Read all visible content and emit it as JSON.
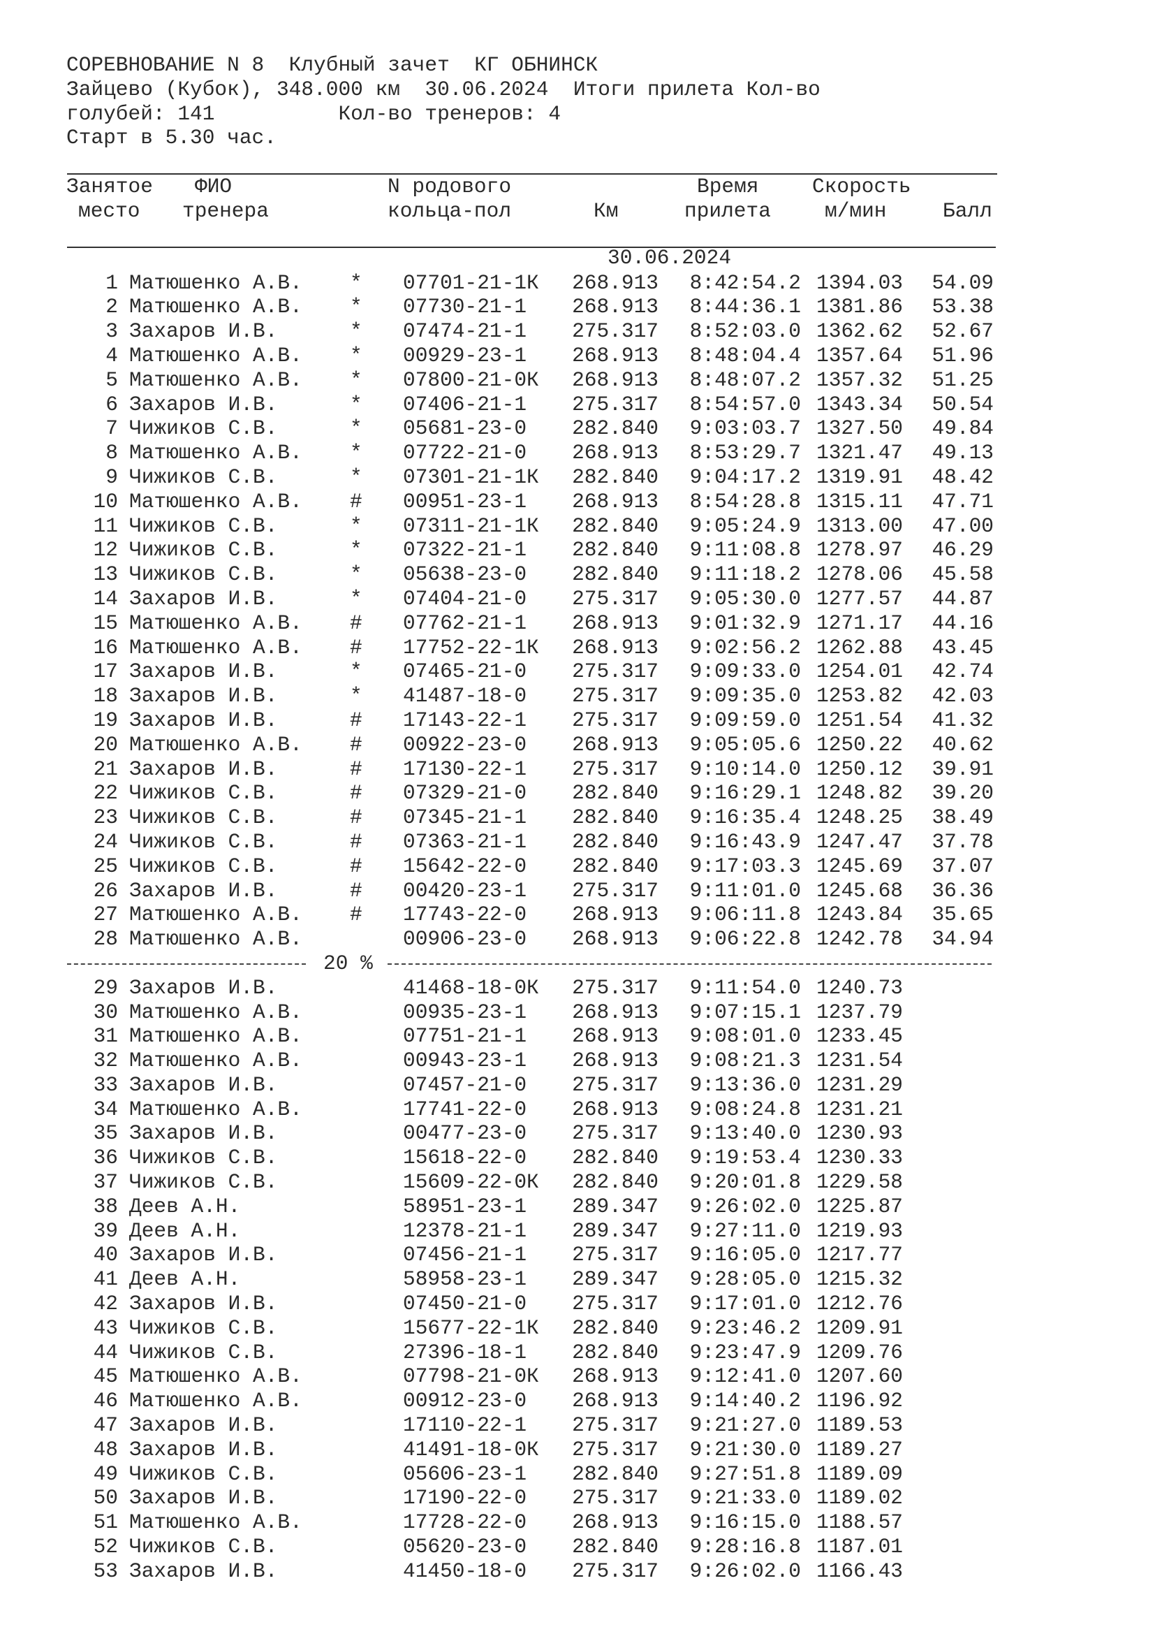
{
  "header": {
    "line1": "СОРЕВНОВАНИЕ N 8  Клубный зачет  КГ ОБНИНСК",
    "line2": "Зайцево (Кубок), 348.000 км  30.06.2024  Итоги прилета Кол-во",
    "line3": "голубей: 141          Кол-во тренеров: 4",
    "line4": "Старт в 5.30 час."
  },
  "columns": {
    "place_1": "Занятое",
    "place_2": "место",
    "name_1": "ФИО",
    "name_2": "тренера",
    "ring_1": "N родового",
    "ring_2": "кольца-пол",
    "km": "Км",
    "time_1": "Время",
    "time_2": "прилета",
    "speed_1": "Скорость",
    "speed_2": "м/мин",
    "score": "Балл"
  },
  "date": "30.06.2024",
  "separator_label": "20 %",
  "rows": [
    [
      "1",
      "Матюшенко А.В.",
      "*",
      "07701-21-1К",
      "268.913",
      "8:42:54.2",
      "1394.03",
      "54.09"
    ],
    [
      "2",
      "Матюшенко А.В.",
      "*",
      "07730-21-1",
      "268.913",
      "8:44:36.1",
      "1381.86",
      "53.38"
    ],
    [
      "3",
      "Захаров И.В.",
      "*",
      "07474-21-1",
      "275.317",
      "8:52:03.0",
      "1362.62",
      "52.67"
    ],
    [
      "4",
      "Матюшенко А.В.",
      "*",
      "00929-23-1",
      "268.913",
      "8:48:04.4",
      "1357.64",
      "51.96"
    ],
    [
      "5",
      "Матюшенко А.В.",
      "*",
      "07800-21-0К",
      "268.913",
      "8:48:07.2",
      "1357.32",
      "51.25"
    ],
    [
      "6",
      "Захаров И.В.",
      "*",
      "07406-21-1",
      "275.317",
      "8:54:57.0",
      "1343.34",
      "50.54"
    ],
    [
      "7",
      "Чижиков С.В.",
      "*",
      "05681-23-0",
      "282.840",
      "9:03:03.7",
      "1327.50",
      "49.84"
    ],
    [
      "8",
      "Матюшенко А.В.",
      "*",
      "07722-21-0",
      "268.913",
      "8:53:29.7",
      "1321.47",
      "49.13"
    ],
    [
      "9",
      "Чижиков С.В.",
      "*",
      "07301-21-1К",
      "282.840",
      "9:04:17.2",
      "1319.91",
      "48.42"
    ],
    [
      "10",
      "Матюшенко А.В.",
      "#",
      "00951-23-1",
      "268.913",
      "8:54:28.8",
      "1315.11",
      "47.71"
    ],
    [
      "11",
      "Чижиков С.В.",
      "*",
      "07311-21-1К",
      "282.840",
      "9:05:24.9",
      "1313.00",
      "47.00"
    ],
    [
      "12",
      "Чижиков С.В.",
      "*",
      "07322-21-1",
      "282.840",
      "9:11:08.8",
      "1278.97",
      "46.29"
    ],
    [
      "13",
      "Чижиков С.В.",
      "*",
      "05638-23-0",
      "282.840",
      "9:11:18.2",
      "1278.06",
      "45.58"
    ],
    [
      "14",
      "Захаров И.В.",
      "*",
      "07404-21-0",
      "275.317",
      "9:05:30.0",
      "1277.57",
      "44.87"
    ],
    [
      "15",
      "Матюшенко А.В.",
      "#",
      "07762-21-1",
      "268.913",
      "9:01:32.9",
      "1271.17",
      "44.16"
    ],
    [
      "16",
      "Матюшенко А.В.",
      "#",
      "17752-22-1К",
      "268.913",
      "9:02:56.2",
      "1262.88",
      "43.45"
    ],
    [
      "17",
      "Захаров И.В.",
      "*",
      "07465-21-0",
      "275.317",
      "9:09:33.0",
      "1254.01",
      "42.74"
    ],
    [
      "18",
      "Захаров И.В.",
      "*",
      "41487-18-0",
      "275.317",
      "9:09:35.0",
      "1253.82",
      "42.03"
    ],
    [
      "19",
      "Захаров И.В.",
      "#",
      "17143-22-1",
      "275.317",
      "9:09:59.0",
      "1251.54",
      "41.32"
    ],
    [
      "20",
      "Матюшенко А.В.",
      "#",
      "00922-23-0",
      "268.913",
      "9:05:05.6",
      "1250.22",
      "40.62"
    ],
    [
      "21",
      "Захаров И.В.",
      "#",
      "17130-22-1",
      "275.317",
      "9:10:14.0",
      "1250.12",
      "39.91"
    ],
    [
      "22",
      "Чижиков С.В.",
      "#",
      "07329-21-0",
      "282.840",
      "9:16:29.1",
      "1248.82",
      "39.20"
    ],
    [
      "23",
      "Чижиков С.В.",
      "#",
      "07345-21-1",
      "282.840",
      "9:16:35.4",
      "1248.25",
      "38.49"
    ],
    [
      "24",
      "Чижиков С.В.",
      "#",
      "07363-21-1",
      "282.840",
      "9:16:43.9",
      "1247.47",
      "37.78"
    ],
    [
      "25",
      "Чижиков С.В.",
      "#",
      "15642-22-0",
      "282.840",
      "9:17:03.3",
      "1245.69",
      "37.07"
    ],
    [
      "26",
      "Захаров И.В.",
      "#",
      "00420-23-1",
      "275.317",
      "9:11:01.0",
      "1245.68",
      "36.36"
    ],
    [
      "27",
      "Матюшенко А.В.",
      "#",
      "17743-22-0",
      "268.913",
      "9:06:11.8",
      "1243.84",
      "35.65"
    ],
    [
      "28",
      "Матюшенко А.В.",
      "",
      "00906-23-0",
      "268.913",
      "9:06:22.8",
      "1242.78",
      "34.94"
    ],
    [
      "29",
      "Захаров И.В.",
      "",
      "41468-18-0К",
      "275.317",
      "9:11:54.0",
      "1240.73",
      ""
    ],
    [
      "30",
      "Матюшенко А.В.",
      "",
      "00935-23-1",
      "268.913",
      "9:07:15.1",
      "1237.79",
      ""
    ],
    [
      "31",
      "Матюшенко А.В.",
      "",
      "07751-21-1",
      "268.913",
      "9:08:01.0",
      "1233.45",
      ""
    ],
    [
      "32",
      "Матюшенко А.В.",
      "",
      "00943-23-1",
      "268.913",
      "9:08:21.3",
      "1231.54",
      ""
    ],
    [
      "33",
      "Захаров И.В.",
      "",
      "07457-21-0",
      "275.317",
      "9:13:36.0",
      "1231.29",
      ""
    ],
    [
      "34",
      "Матюшенко А.В.",
      "",
      "17741-22-0",
      "268.913",
      "9:08:24.8",
      "1231.21",
      ""
    ],
    [
      "35",
      "Захаров И.В.",
      "",
      "00477-23-0",
      "275.317",
      "9:13:40.0",
      "1230.93",
      ""
    ],
    [
      "36",
      "Чижиков С.В.",
      "",
      "15618-22-0",
      "282.840",
      "9:19:53.4",
      "1230.33",
      ""
    ],
    [
      "37",
      "Чижиков С.В.",
      "",
      "15609-22-0К",
      "282.840",
      "9:20:01.8",
      "1229.58",
      ""
    ],
    [
      "38",
      "Деев А.Н.",
      "",
      "58951-23-1",
      "289.347",
      "9:26:02.0",
      "1225.87",
      ""
    ],
    [
      "39",
      "Деев А.Н.",
      "",
      "12378-21-1",
      "289.347",
      "9:27:11.0",
      "1219.93",
      ""
    ],
    [
      "40",
      "Захаров И.В.",
      "",
      "07456-21-1",
      "275.317",
      "9:16:05.0",
      "1217.77",
      ""
    ],
    [
      "41",
      "Деев А.Н.",
      "",
      "58958-23-1",
      "289.347",
      "9:28:05.0",
      "1215.32",
      ""
    ],
    [
      "42",
      "Захаров И.В.",
      "",
      "07450-21-0",
      "275.317",
      "9:17:01.0",
      "1212.76",
      ""
    ],
    [
      "43",
      "Чижиков С.В.",
      "",
      "15677-22-1К",
      "282.840",
      "9:23:46.2",
      "1209.91",
      ""
    ],
    [
      "44",
      "Чижиков С.В.",
      "",
      "27396-18-1",
      "282.840",
      "9:23:47.9",
      "1209.76",
      ""
    ],
    [
      "45",
      "Матюшенко А.В.",
      "",
      "07798-21-0К",
      "268.913",
      "9:12:41.0",
      "1207.60",
      ""
    ],
    [
      "46",
      "Матюшенко А.В.",
      "",
      "00912-23-0",
      "268.913",
      "9:14:40.2",
      "1196.92",
      ""
    ],
    [
      "47",
      "Захаров И.В.",
      "",
      "17110-22-1",
      "275.317",
      "9:21:27.0",
      "1189.53",
      ""
    ],
    [
      "48",
      "Захаров И.В.",
      "",
      "41491-18-0К",
      "275.317",
      "9:21:30.0",
      "1189.27",
      ""
    ],
    [
      "49",
      "Чижиков С.В.",
      "",
      "05606-23-1",
      "282.840",
      "9:27:51.8",
      "1189.09",
      ""
    ],
    [
      "50",
      "Захаров И.В.",
      "",
      "17190-22-0",
      "275.317",
      "9:21:33.0",
      "1189.02",
      ""
    ],
    [
      "51",
      "Матюшенко А.В.",
      "",
      "17728-22-0",
      "268.913",
      "9:16:15.0",
      "1188.57",
      ""
    ],
    [
      "52",
      "Чижиков С.В.",
      "",
      "05620-23-0",
      "282.840",
      "9:28:16.8",
      "1187.01",
      ""
    ],
    [
      "53",
      "Захаров И.В.",
      "",
      "41450-18-0",
      "275.317",
      "9:26:02.0",
      "1166.43",
      ""
    ]
  ]
}
